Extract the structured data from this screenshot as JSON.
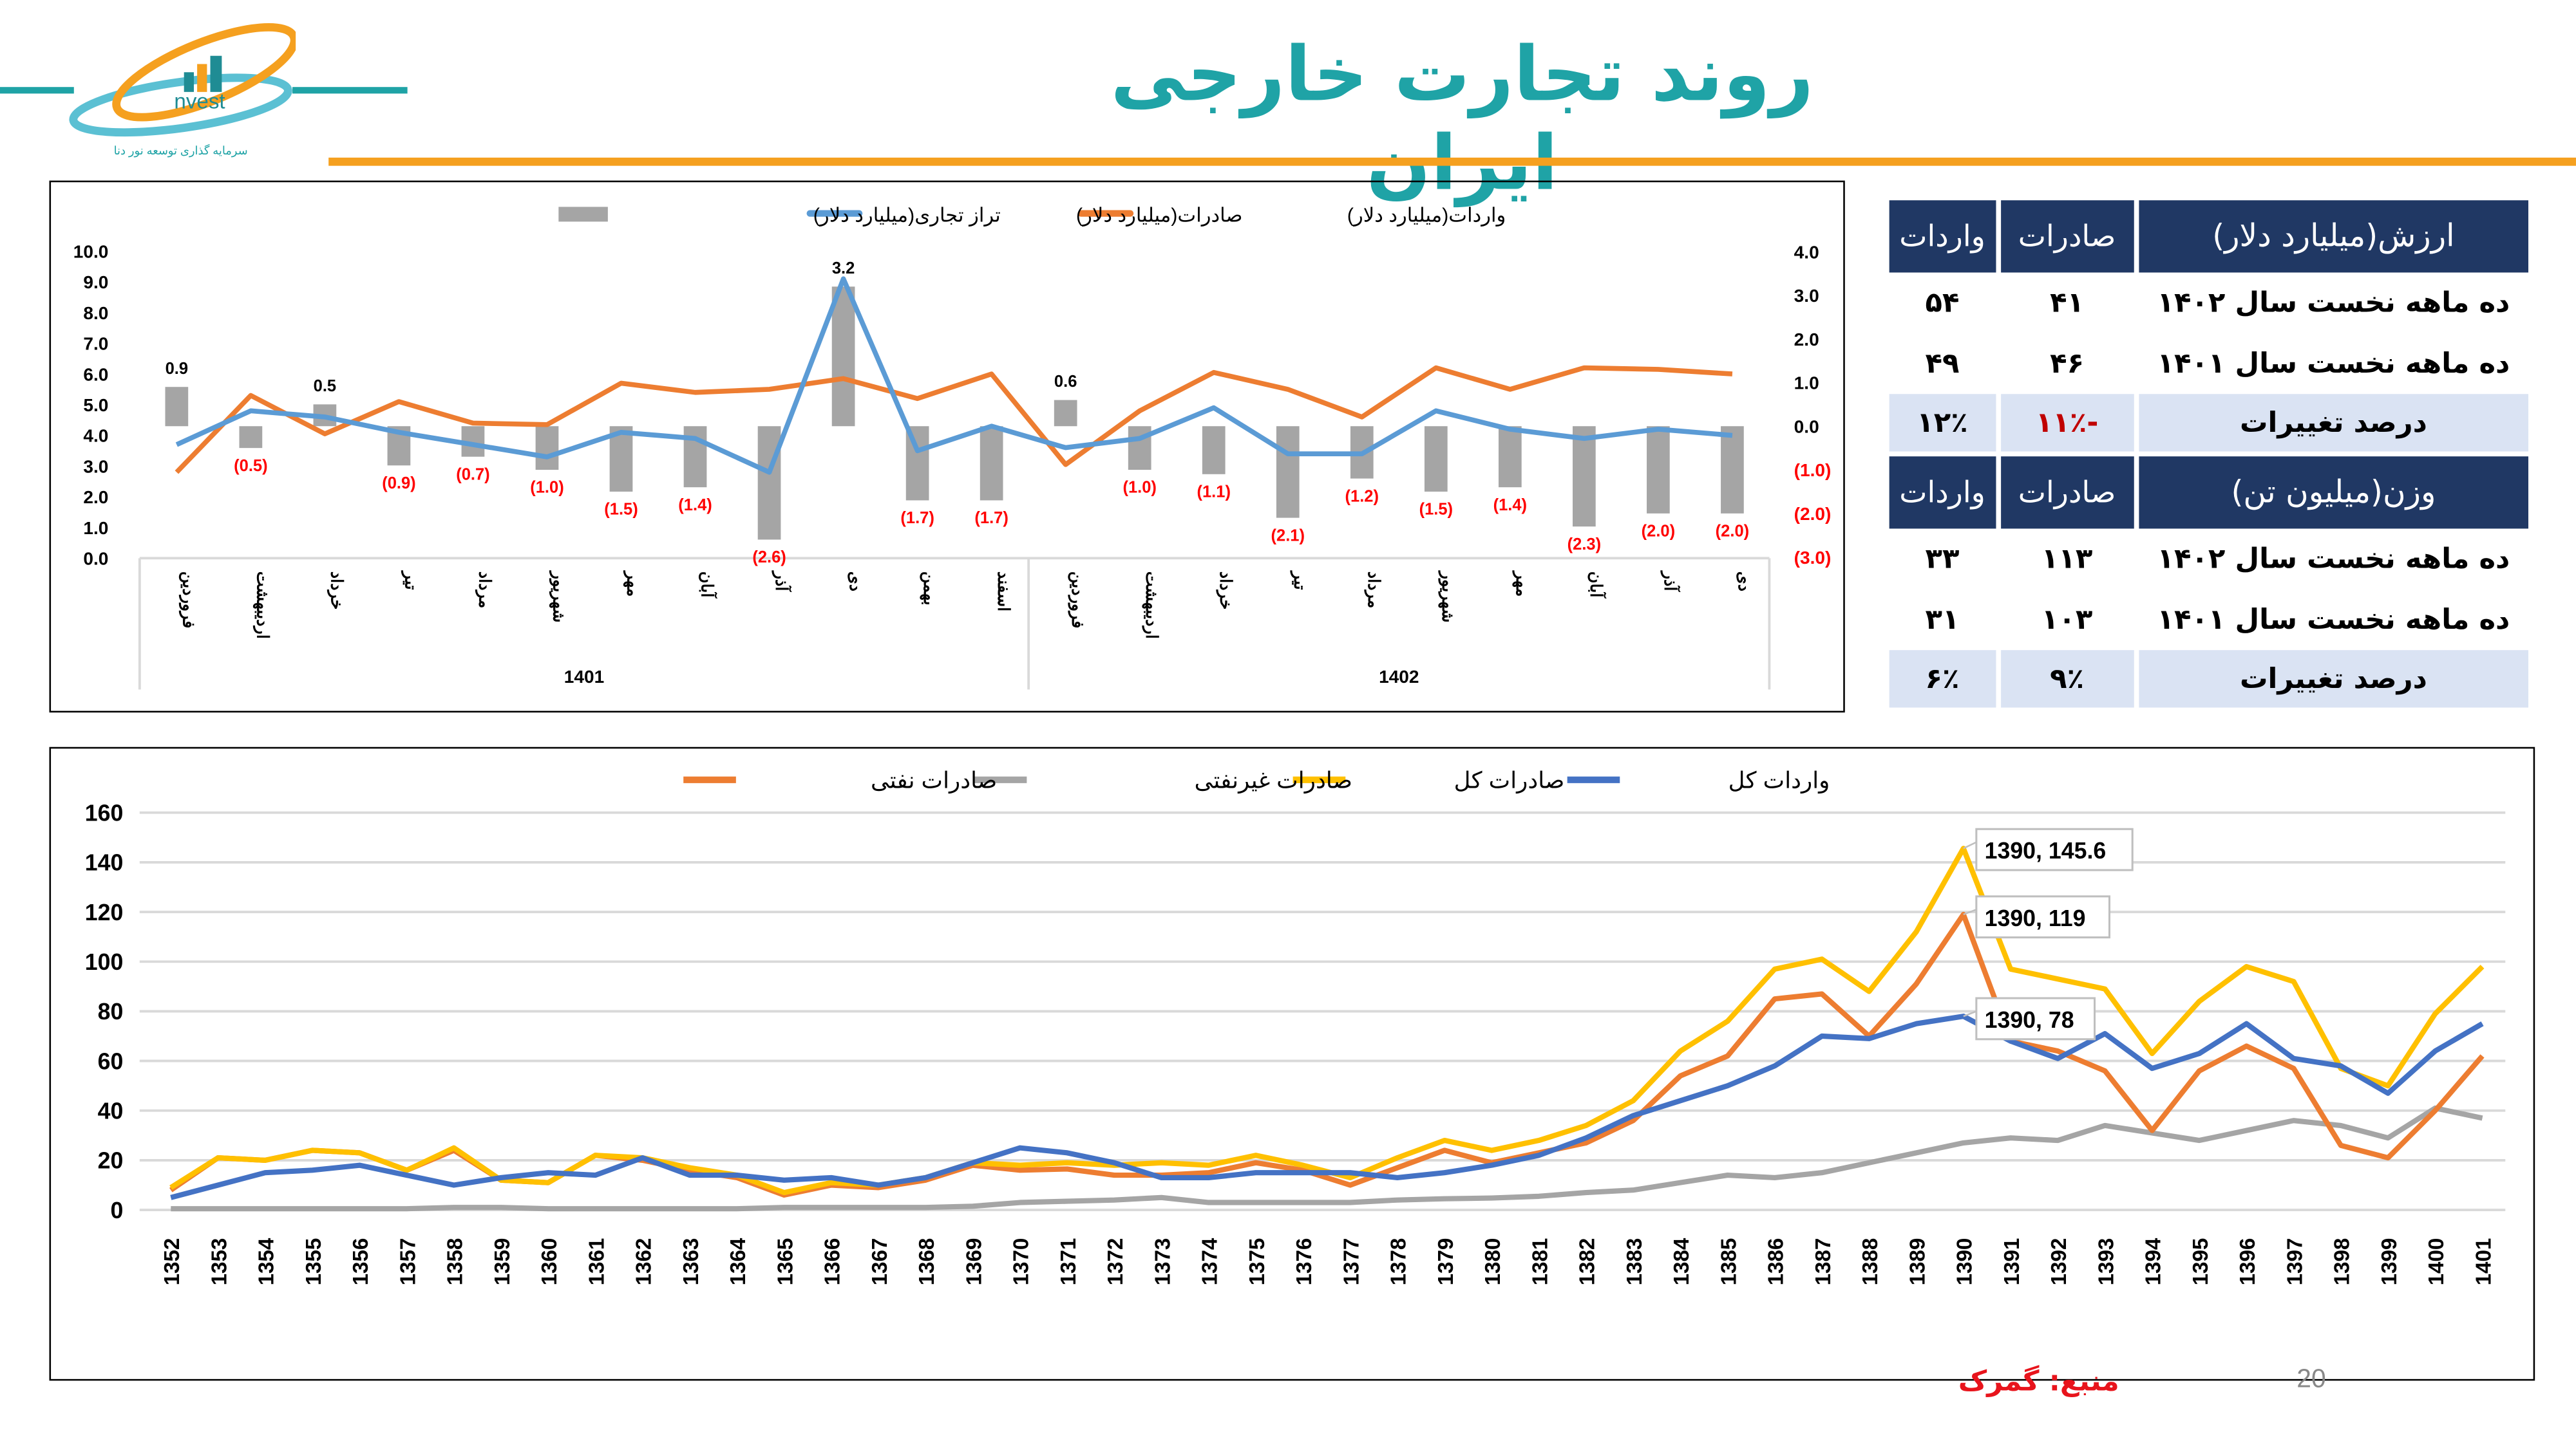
{
  "header": {
    "title": "روند تجارت خارجی ایران",
    "logo": {
      "text": "nvest",
      "subtitle": "سرمایه گذاری توسعه نور دنا"
    },
    "colors": {
      "title": "#1fa3a6",
      "rule": "#f5a01f"
    }
  },
  "table": {
    "value_section": {
      "header": "ارزش(میلیارد دلار)",
      "col_exports": "صادرات",
      "col_imports": "واردات",
      "rows": [
        {
          "label": "ده ماهه نخست سال ۱۴۰۲",
          "exports": "۴۱",
          "imports": "۵۴"
        },
        {
          "label": "ده ماهه نخست سال ۱۴۰۱",
          "exports": "۴۶",
          "imports": "۴۹"
        }
      ],
      "change": {
        "label": "درصد تغییرات",
        "exports": "-۱۱٪",
        "imports": "۱۲٪"
      }
    },
    "weight_section": {
      "header": "وزن(میلیون تن)",
      "col_exports": "صادرات",
      "col_imports": "واردات",
      "rows": [
        {
          "label": "ده ماهه نخست سال ۱۴۰۲",
          "exports": "۱۱۳",
          "imports": "۳۳"
        },
        {
          "label": "ده ماهه نخست سال ۱۴۰۱",
          "exports": "۱۰۳",
          "imports": "۳۱"
        }
      ],
      "change": {
        "label": "درصد تغییرات",
        "exports": "۹٪",
        "imports": "۶٪"
      }
    }
  },
  "chart_data": [
    {
      "type": "bar+line",
      "legend_position": "top",
      "groups": [
        {
          "label": "1401",
          "count": 12
        },
        {
          "label": "1402",
          "count": 10
        }
      ],
      "categories": [
        "فروردین",
        "اردیبهشت",
        "خرداد",
        "تیر",
        "مرداد",
        "شهریور",
        "مهر",
        "آبان",
        "آذر",
        "دی",
        "بهمن",
        "اسفند",
        "فروردین",
        "اردیبهشت",
        "خرداد",
        "تیر",
        "مرداد",
        "شهریور",
        "مهر",
        "آبان",
        "آذر",
        "دی"
      ],
      "left_axis": {
        "ylim": [
          0,
          10
        ],
        "ticks": [
          "0.0",
          "1.0",
          "2.0",
          "3.0",
          "4.0",
          "5.0",
          "6.0",
          "7.0",
          "8.0",
          "9.0",
          "10.0"
        ]
      },
      "right_axis": {
        "ylim": [
          -3,
          4
        ],
        "ticks": [
          "(3.0)",
          "(2.0)",
          "(1.0)",
          "0.0",
          "1.0",
          "2.0",
          "3.0",
          "4.0"
        ]
      },
      "series": [
        {
          "name": "واردات(میلیارد دلار)",
          "type": "line",
          "axis": "left",
          "color": "#ed7d31",
          "values": [
            2.8,
            5.3,
            4.05,
            5.1,
            4.4,
            4.35,
            5.7,
            5.4,
            5.5,
            5.85,
            5.2,
            6.0,
            3.05,
            4.8,
            6.05,
            5.5,
            4.6,
            6.2,
            5.5,
            6.2,
            6.15,
            6.0
          ]
        },
        {
          "name": "صادرات(میلیارد دلار)",
          "type": "line",
          "axis": "left",
          "color": "#5b9bd5",
          "values": [
            3.7,
            4.8,
            4.6,
            4.1,
            3.7,
            3.3,
            4.1,
            3.9,
            2.8,
            9.1,
            3.5,
            4.3,
            3.6,
            3.9,
            4.9,
            3.4,
            3.4,
            4.8,
            4.2,
            3.9,
            4.2,
            4.0
          ]
        },
        {
          "name": "تراز تجاری(میلیارد دلار)",
          "type": "bar",
          "axis": "right",
          "color": "#a5a5a5",
          "values": [
            0.9,
            -0.5,
            0.5,
            -0.9,
            -0.7,
            -1.0,
            -1.5,
            -1.4,
            -2.6,
            3.2,
            -1.7,
            -1.7,
            0.6,
            -1.0,
            -1.1,
            -2.1,
            -1.2,
            -1.5,
            -1.4,
            -2.3,
            -2.0,
            -2.0
          ],
          "labels": [
            "0.9",
            "(0.5)",
            "0.5",
            "(0.9)",
            "(0.7)",
            "(1.0)",
            "(1.5)",
            "(1.4)",
            "(2.6)",
            "3.2",
            "(1.7)",
            "(1.7)",
            "0.6",
            "(1.0)",
            "(1.1)",
            "(2.1)",
            "(1.2)",
            "(1.5)",
            "(1.4)",
            "(2.3)",
            "(2.0)",
            "(2.0)"
          ],
          "label_colors": {
            "positive": "#000000",
            "negative": "#ff0000"
          }
        }
      ]
    },
    {
      "type": "line",
      "legend_position": "top",
      "grid": true,
      "ylim": [
        0,
        160
      ],
      "yticks": [
        "0",
        "20",
        "40",
        "60",
        "80",
        "100",
        "120",
        "140",
        "160"
      ],
      "x": [
        1352,
        1353,
        1354,
        1355,
        1356,
        1357,
        1358,
        1359,
        1360,
        1361,
        1362,
        1363,
        1364,
        1365,
        1366,
        1367,
        1368,
        1369,
        1370,
        1371,
        1372,
        1373,
        1374,
        1375,
        1376,
        1377,
        1378,
        1379,
        1380,
        1381,
        1382,
        1383,
        1384,
        1385,
        1386,
        1387,
        1388,
        1389,
        1390,
        1391,
        1392,
        1393,
        1394,
        1395,
        1396,
        1397,
        1398,
        1399,
        1400,
        1401
      ],
      "series": [
        {
          "name": "صادرات نفتی",
          "color": "#ed7d31",
          "values": [
            8,
            21,
            20,
            24,
            23,
            16,
            24,
            12,
            11,
            22,
            20,
            16,
            13,
            6,
            10,
            9,
            12,
            18,
            16,
            16.5,
            14,
            14,
            15,
            19,
            16,
            10,
            17,
            24,
            19,
            23,
            27,
            36,
            54,
            62,
            85,
            87,
            70,
            91,
            119,
            68,
            64,
            56,
            32,
            56,
            66,
            57,
            26,
            21,
            40,
            62
          ]
        },
        {
          "name": "صادرات غیرنفتی",
          "color": "#a5a5a5",
          "values": [
            0.5,
            0.5,
            0.5,
            0.5,
            0.5,
            0.5,
            1,
            1,
            0.5,
            0.5,
            0.5,
            0.5,
            0.5,
            1,
            1,
            1,
            1,
            1.5,
            3,
            3.5,
            4,
            5,
            3,
            3,
            3,
            3,
            4,
            4.5,
            4.8,
            5.5,
            7,
            8,
            11,
            14,
            13,
            15,
            19,
            23,
            27,
            29,
            28,
            34,
            31,
            28,
            32,
            36,
            34,
            29,
            41,
            37
          ]
        },
        {
          "name": "صادرات کل",
          "color": "#ffc000",
          "values": [
            9,
            21,
            20,
            24,
            23,
            16,
            25,
            12,
            11,
            22,
            21,
            17,
            14,
            7,
            11,
            10,
            13,
            19,
            18,
            19,
            18,
            19,
            18,
            22,
            18,
            13,
            21,
            28,
            24,
            28,
            34,
            44,
            64,
            76,
            97,
            101,
            88,
            112,
            145.6,
            97,
            93,
            89,
            63,
            84,
            98,
            92,
            57,
            50,
            79,
            98
          ]
        },
        {
          "name": "واردات کل",
          "color": "#4472c4",
          "values": [
            5,
            10,
            15,
            16,
            18,
            14,
            10,
            13,
            15,
            14,
            21,
            14,
            14,
            12,
            13,
            10,
            13,
            19,
            25,
            23,
            19,
            13,
            13,
            15,
            15,
            15,
            13,
            15,
            18,
            22,
            29,
            38,
            44,
            50,
            58,
            70,
            69,
            75,
            78,
            68,
            61,
            71,
            57,
            63,
            75,
            61,
            58,
            47,
            64,
            75
          ]
        }
      ],
      "annotations": [
        "1390, 145.6",
        "1390, 119",
        "1390, 78"
      ]
    }
  ],
  "footer": {
    "source": "منبع: گمرک",
    "page": "20"
  }
}
